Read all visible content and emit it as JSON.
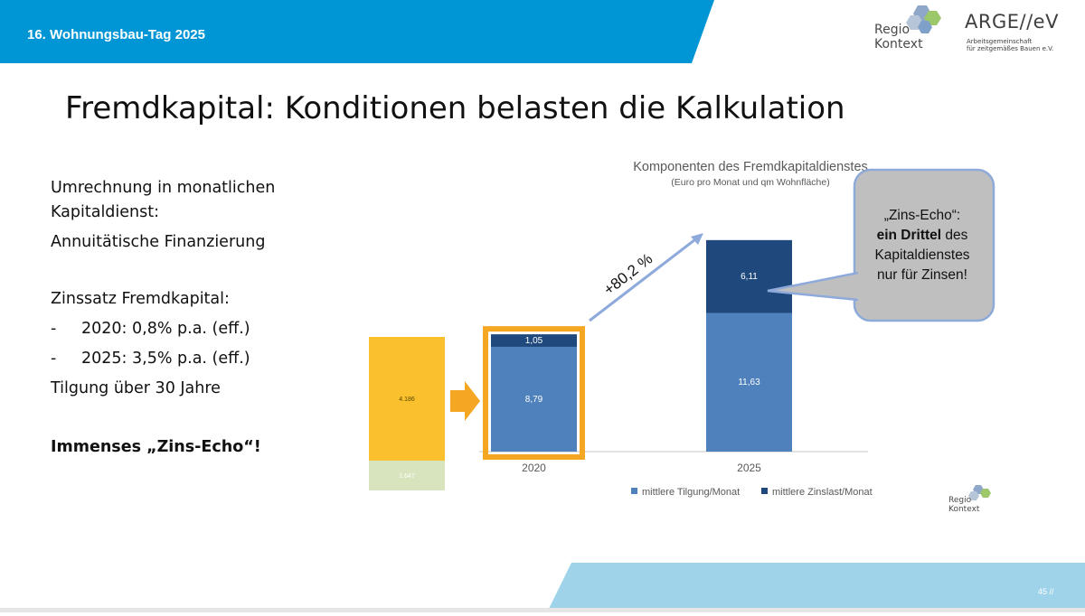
{
  "header": {
    "event_title": "16. Wohnungsbau-Tag 2025",
    "colors": {
      "band": "#0096d6",
      "footer_band": "#9fd3ea"
    }
  },
  "logos": {
    "regio": {
      "line1": "Regio",
      "line2": "Kontext"
    },
    "arge": {
      "name": "ARGE//eV",
      "sub1": "Arbeitsgemeinschaft",
      "sub2": "für zeitgemäßes Bauen e.V."
    }
  },
  "slide": {
    "title": "Fremdkapital: Konditionen belasten die Kalkulation",
    "bullets": {
      "line1": "Umrechnung in monatlichen",
      "line2": "Kapitaldienst:",
      "line3": "Annuitätische Finanzierung",
      "line4": "Zinssatz Fremdkapital:",
      "dash": "-",
      "line5": "2020: 0,8% p.a. (eff.)",
      "line6": "2025: 3,5% p.a. (eff.)",
      "line7": "Tilgung über 30 Jahre",
      "line8": "Immenses „Zins-Echo“!"
    },
    "page_number": "45 //"
  },
  "chart_data": {
    "type": "bar",
    "stacked": true,
    "title": "Komponenten des Fremdkapitaldienstes",
    "subtitle": "(Euro pro Monat und qm Wohnfläche)",
    "categories": [
      "2020",
      "2025"
    ],
    "series": [
      {
        "name": "mittlere Tilgung/Monat",
        "values": [
          8.79,
          11.63
        ],
        "labels": [
          "8,79",
          "11,63"
        ],
        "color": "#4f81bd"
      },
      {
        "name": "mittlere Zinslast/Monat",
        "values": [
          1.05,
          6.11
        ],
        "labels": [
          "1,05",
          "6,11"
        ],
        "color": "#1f497d"
      }
    ],
    "growth_label": "+80,2 %",
    "highlight_color": "#f5a623",
    "side_bar": {
      "values": [
        4.186,
        1.647
      ],
      "labels": [
        "4.186",
        "1.647"
      ],
      "colors": [
        "#fbc02d",
        "#d7e4bd"
      ]
    },
    "ylim": [
      0,
      18
    ],
    "legend_position": "bottom"
  },
  "callout": {
    "line1": "„Zins-Echo“:",
    "line2_bold": "ein Drittel",
    "line2_rest": " des",
    "line3": "Kapitaldienstes",
    "line4": "nur für Zinsen!"
  }
}
